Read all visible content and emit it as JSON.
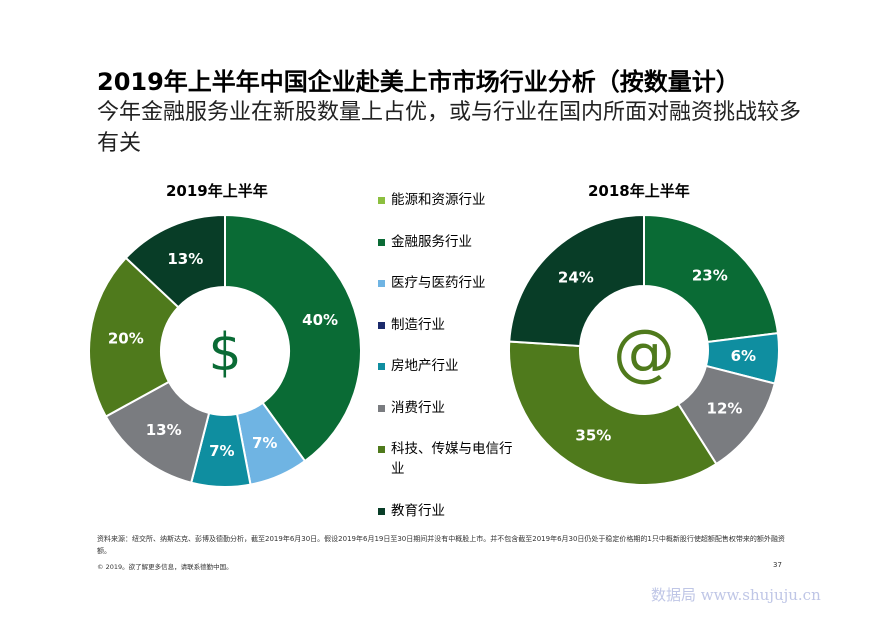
{
  "header": {
    "title": "2019年上半年中国企业赴美上市市场行业分析（按数量计）",
    "subtitle": "今年金融服务业在新股数量上占优，或与行业在国内所面对融资挑战较多有关"
  },
  "legend": [
    {
      "name": "能源和资源行业",
      "color": "#8cbf3f"
    },
    {
      "name": "金融服务行业",
      "color": "#0a6b35"
    },
    {
      "name": "医疗与医药行业",
      "color": "#6fb4e3"
    },
    {
      "name": "制造行业",
      "color": "#1b2a6b"
    },
    {
      "name": "房地产行业",
      "color": "#0f8ea0"
    },
    {
      "name": "消费行业",
      "color": "#7a7c80"
    },
    {
      "name": "科技、传媒与电信行业",
      "color": "#4f7a1c"
    },
    {
      "name": "教育行业",
      "color": "#083d27"
    }
  ],
  "chart_data": [
    {
      "type": "pie",
      "title": "2019年上半年",
      "center_icon": "$",
      "center_icon_color": "#0a6b35",
      "slices": [
        {
          "category": "金融服务行业",
          "value": 40,
          "label": "40%",
          "color": "#0a6b35"
        },
        {
          "category": "医疗与医药行业",
          "value": 7,
          "label": "7%",
          "color": "#6fb4e3"
        },
        {
          "category": "房地产行业",
          "value": 7,
          "label": "7%",
          "color": "#0f8ea0"
        },
        {
          "category": "消费行业",
          "value": 13,
          "label": "13%",
          "color": "#7a7c80"
        },
        {
          "category": "科技、传媒与电信行业",
          "value": 20,
          "label": "20%",
          "color": "#4f7a1c"
        },
        {
          "category": "教育行业",
          "value": 13,
          "label": "13%",
          "color": "#083d27"
        }
      ]
    },
    {
      "type": "pie",
      "title": "2018年上半年",
      "center_icon": "@",
      "center_icon_color": "#4f7a1c",
      "slices": [
        {
          "category": "金融服务行业",
          "value": 23,
          "label": "23%",
          "color": "#0a6b35"
        },
        {
          "category": "房地产行业",
          "value": 6,
          "label": "6%",
          "color": "#0f8ea0"
        },
        {
          "category": "消费行业",
          "value": 12,
          "label": "12%",
          "color": "#7a7c80"
        },
        {
          "category": "科技、传媒与电信行业",
          "value": 35,
          "label": "35%",
          "color": "#4f7a1c"
        },
        {
          "category": "教育行业",
          "value": 24,
          "label": "24%",
          "color": "#083d27"
        }
      ]
    }
  ],
  "footer": {
    "source": "资料来源：纽交所、纳斯达克、彭博及德勤分析，截至2019年6月30日。假设2019年6月19日至30日期间并没有中概股上市。并不包含截至2019年6月30日仍处于稳定价格期的1只中概新股行使超额配售权带来的额外融资额。",
    "copyright": "© 2019。欲了解更多信息，请联系德勤中国。",
    "page_number": "37",
    "watermark": "数据局 www.shujuju.cn"
  }
}
